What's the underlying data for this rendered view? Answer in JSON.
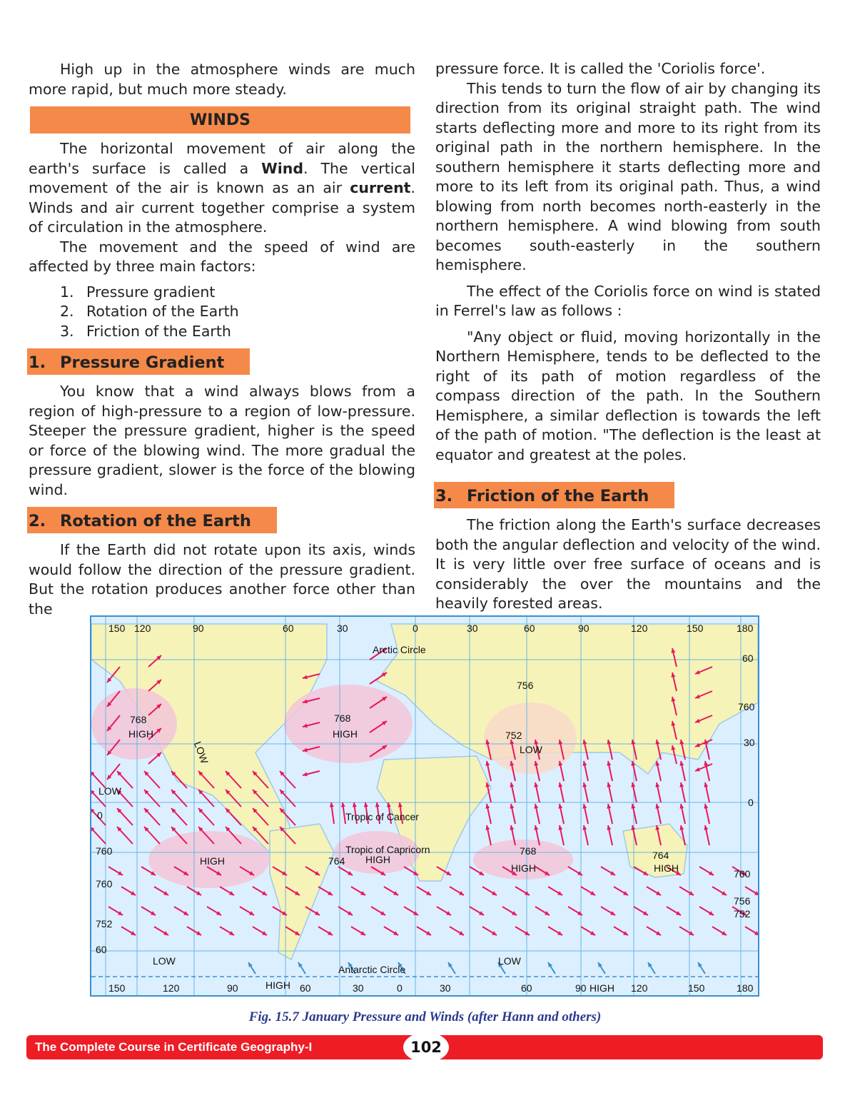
{
  "left": {
    "intro": "High up in the atmosphere winds are much more rapid, but much more steady.",
    "winds_heading": "WINDS",
    "winds_p1": [
      "The horizontal movement of air along the earth's surface is called a ",
      "Wind",
      ". The vertical movement of the air is known as an air ",
      "current",
      ". Winds and air current together comprise a system of circulation in the atmosphere."
    ],
    "winds_p2": "The movement and the speed of wind are affected by three main factors:",
    "factors": [
      {
        "num": "1.",
        "label": "Pressure gradient"
      },
      {
        "num": "2.",
        "label": "Rotation of the Earth"
      },
      {
        "num": "3.",
        "label": "Friction of the Earth"
      }
    ],
    "sec1": {
      "num": "1.",
      "title": "Pressure Gradient",
      "text": "You know that a wind always blows from a region of high-pressure to a region of low-pressure. Steeper the pressure gradient, higher is the speed or force of the blowing wind. The more gradual the pressure gradient, slower is the force of the blowing wind."
    },
    "sec2": {
      "num": "2.",
      "title": "Rotation of the Earth",
      "text": "If the Earth did not rotate upon its axis, winds would follow the direction of the pressure gradient. But the rotation produces another force other than the"
    }
  },
  "right": {
    "p0": "pressure force. It is called the 'Coriolis force'.",
    "p1": "This tends to turn the flow of air by changing its direction from its original straight path. The wind starts deflecting more and more to its right from its original path in the northern hemisphere. In the southern hemisphere it starts deflecting more and more to its left from its original path. Thus, a wind blowing from north becomes north-easterly in the northern hemisphere. A wind blowing from south becomes south-easterly in the southern hemisphere.",
    "p2": "The effect of the Coriolis force on wind is stated in Ferrel's law as follows :",
    "p3": "\"Any object or fluid, moving horizontally in the Northern Hemisphere, tends to be deflected to the right of its path of motion regardless of the compass direction of the path. In the Southern Hemisphere, a similar deflection is towards the left of the path of motion. \"The deflection is the least at equator and greatest at the poles.",
    "sec3": {
      "num": "3.",
      "title": "Friction of the Earth",
      "text": "The friction along the Earth's surface decreases both the angular deflection and velocity of the wind. It is very little over free surface of oceans and is considerably the over the mountains and the heavily forested areas."
    }
  },
  "map": {
    "top_ticks": [
      "150",
      "120",
      "90",
      "60",
      "30",
      "0",
      "30",
      "60",
      "90",
      "120",
      "150",
      "180"
    ],
    "bottom_ticks": [
      "150",
      "120",
      "90",
      "60",
      "30",
      "0",
      "30",
      "60",
      "90",
      "120",
      "150",
      "180"
    ],
    "labels": [
      "Arctic Circle",
      "756",
      "768",
      "HIGH",
      "768",
      "HIGH",
      "752",
      "LOW",
      "LOW",
      "LOW",
      "0",
      "Tropic of Cancer",
      "Tropic of Capricorn",
      "HIGH",
      "764",
      "HIGH",
      "768",
      "HIGH",
      "764",
      "HIGH",
      "760",
      "760",
      "752",
      "60",
      "LOW",
      "Antarctic Circle",
      "LOW",
      "HIGH",
      "HIGH",
      "60",
      "760",
      "30",
      "0",
      "760",
      "756",
      "752"
    ],
    "colors": {
      "ocean": "#dcefff",
      "land": "#f6f3b8",
      "high": "#f3c6d8",
      "wind_arrow": "#e8175d",
      "polar_arrow": "#3a8fd0"
    }
  },
  "caption": "Fig. 15.7 January Pressure and Winds (after Hann and others)",
  "footer": {
    "title": "The Complete Course in Certificate Geography-I",
    "page": "102",
    "color": "#ee1c25"
  }
}
